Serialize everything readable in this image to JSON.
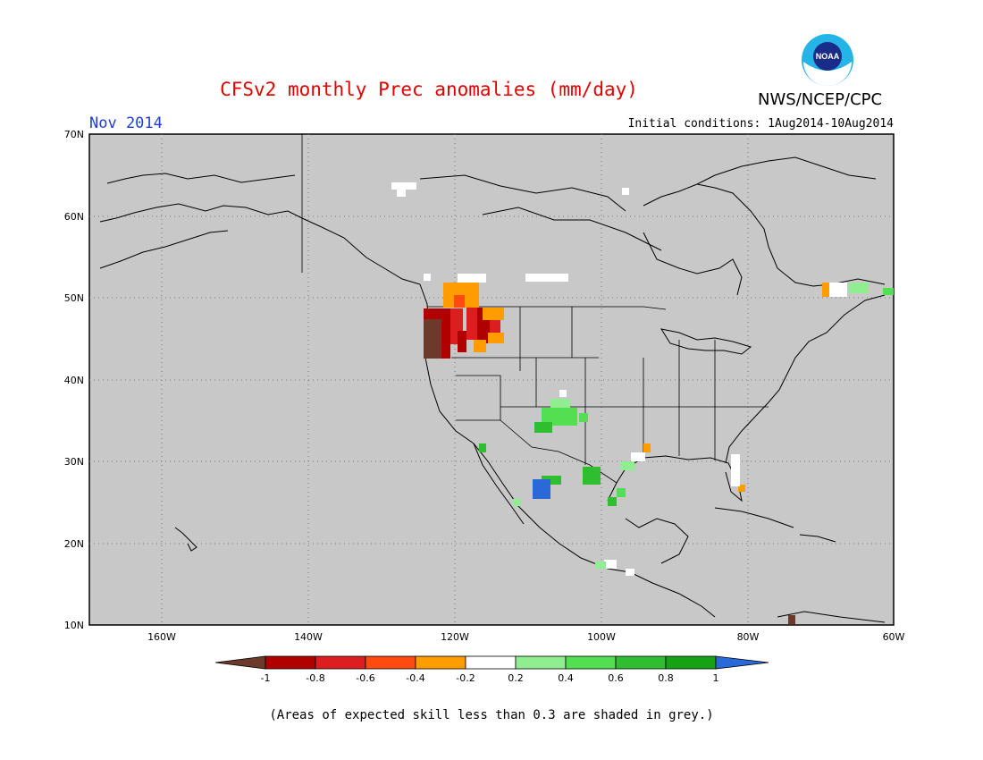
{
  "header": {
    "title": "CFSv2 monthly Prec anomalies (mm/day)",
    "month": "Nov 2014",
    "initial_conditions": "Initial conditions: 1Aug2014-10Aug2014",
    "agency": "NWS/NCEP/CPC",
    "logo_text": "NOAA"
  },
  "map": {
    "lat_labels": [
      "70N",
      "60N",
      "50N",
      "40N",
      "30N",
      "20N",
      "10N"
    ],
    "lon_labels": [
      "160W",
      "140W",
      "120W",
      "100W",
      "80W",
      "60W"
    ],
    "grey_meaning": "skill < 0.3"
  },
  "legend": {
    "ticks": [
      "-1",
      "-0.8",
      "-0.6",
      "-0.4",
      "-0.2",
      "0.2",
      "0.4",
      "0.6",
      "0.8",
      "1"
    ],
    "colors": {
      "lt_-1": "#6b3a2a",
      "-1_-0.8": "#b00000",
      "-0.8_-0.6": "#dc1e1e",
      "-0.6_-0.4": "#ff4a10",
      "-0.4_-0.2": "#ff9c00",
      "-0.2_0.2": "#ffffff",
      "0.2_0.4": "#90ee90",
      "0.4_0.6": "#52e052",
      "0.6_0.8": "#2fbe2f",
      "0.8_1": "#15a315",
      "gt_1": "#2a6ad8"
    }
  },
  "footer": {
    "note": "(Areas of expected skill less than 0.3 are shaded in grey.)"
  }
}
